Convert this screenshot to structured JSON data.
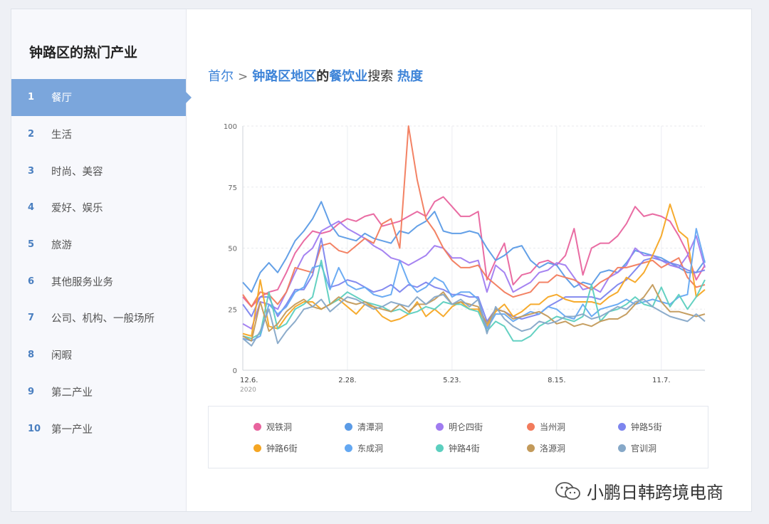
{
  "sidebar": {
    "title": "钟路区的热门产业",
    "items": [
      {
        "num": "1",
        "label": "餐厅"
      },
      {
        "num": "2",
        "label": "生活"
      },
      {
        "num": "3",
        "label": "时尚、美容"
      },
      {
        "num": "4",
        "label": "爱好、娱乐"
      },
      {
        "num": "5",
        "label": "旅游"
      },
      {
        "num": "6",
        "label": "其他服务业务"
      },
      {
        "num": "7",
        "label": "公司、机构、一般场所"
      },
      {
        "num": "8",
        "label": "闲暇"
      },
      {
        "num": "9",
        "label": "第二产业"
      },
      {
        "num": "10",
        "label": "第一产业"
      }
    ],
    "active_index": 0,
    "accent_color": "#7ba6dc"
  },
  "breadcrumb": {
    "root": "首尔",
    "region": "钟路区地区",
    "of1": "的",
    "industry": "餐饮业",
    "search": "搜索",
    "metric": "热度",
    "separator_icon": "chevron-right-icon"
  },
  "watermark": {
    "text": "小鹏日韩跨境电商",
    "icon": "wechat-icon"
  },
  "chart_data": {
    "type": "line",
    "title": "",
    "xlabel": "",
    "ylabel": "",
    "ylim": [
      0,
      100
    ],
    "y_ticks": [
      0,
      25,
      50,
      75,
      100
    ],
    "x_ticks": [
      {
        "index": 0,
        "label": "12.6.",
        "sublabel": "2020"
      },
      {
        "index": 12,
        "label": "2.28."
      },
      {
        "index": 24,
        "label": "5.23."
      },
      {
        "index": 36,
        "label": "8.15."
      },
      {
        "index": 48,
        "label": "11.7."
      }
    ],
    "grid": true,
    "legend_position": "bottom",
    "series": [
      {
        "name": "观铁洞",
        "color": "#e8649e",
        "values": [
          30,
          26,
          30,
          32,
          33,
          40,
          48,
          53,
          57,
          56,
          57,
          60,
          62,
          61,
          63,
          64,
          59,
          60,
          61,
          63,
          65,
          63,
          69,
          71,
          67,
          63,
          63,
          65,
          37,
          45,
          52,
          35,
          39,
          40,
          44,
          45,
          43,
          47,
          58,
          39,
          50,
          52,
          52,
          55,
          60,
          67,
          63,
          64,
          63,
          61,
          55,
          48,
          37,
          43
        ]
      },
      {
        "name": "清潭洞",
        "color": "#5b9be6",
        "values": [
          36,
          32,
          40,
          44,
          40,
          46,
          53,
          57,
          62,
          69,
          60,
          55,
          54,
          53,
          56,
          54,
          53,
          52,
          57,
          56,
          59,
          61,
          65,
          57,
          56,
          56,
          57,
          56,
          50,
          45,
          47,
          50,
          51,
          45,
          42,
          44,
          43,
          38,
          34,
          36,
          35,
          40,
          41,
          40,
          44,
          49,
          48,
          47,
          46,
          44,
          42,
          40,
          40,
          45
        ]
      },
      {
        "name": "明仑四街",
        "color": "#a07cf0",
        "values": [
          19,
          17,
          28,
          27,
          25,
          32,
          40,
          47,
          50,
          57,
          59,
          61,
          58,
          56,
          54,
          51,
          49,
          46,
          45,
          43,
          45,
          47,
          51,
          50,
          46,
          46,
          44,
          45,
          32,
          43,
          40,
          32,
          34,
          36,
          40,
          41,
          44,
          43,
          38,
          33,
          34,
          32,
          38,
          40,
          43,
          50,
          47,
          47,
          45,
          43,
          42,
          47,
          55,
          42
        ]
      },
      {
        "name": "当州洞",
        "color": "#f27b5c",
        "values": [
          31,
          26,
          32,
          31,
          27,
          32,
          42,
          41,
          40,
          51,
          52,
          49,
          48,
          51,
          54,
          52,
          60,
          62,
          50,
          100,
          78,
          62,
          57,
          50,
          45,
          42,
          42,
          43,
          38,
          35,
          32,
          30,
          31,
          32,
          36,
          36,
          39,
          38,
          37,
          35,
          33,
          36,
          38,
          42,
          42,
          43,
          44,
          45,
          42,
          44,
          46,
          38,
          34,
          35
        ]
      },
      {
        "name": "钟路5街",
        "color": "#7d85ee",
        "values": [
          27,
          22,
          30,
          30,
          22,
          27,
          33,
          33,
          39,
          54,
          34,
          35,
          37,
          36,
          34,
          32,
          33,
          35,
          32,
          35,
          34,
          36,
          34,
          33,
          31,
          31,
          30,
          30,
          20,
          25,
          24,
          22,
          21,
          22,
          23,
          26,
          28,
          30,
          30,
          30,
          30,
          29,
          32,
          35,
          37,
          41,
          45,
          46,
          45,
          44,
          43,
          41,
          40,
          41
        ]
      },
      {
        "name": "钟路6街",
        "color": "#f5a623",
        "values": [
          15,
          14,
          37,
          18,
          17,
          22,
          26,
          28,
          28,
          25,
          27,
          29,
          26,
          23,
          27,
          26,
          22,
          20,
          21,
          23,
          28,
          22,
          25,
          22,
          26,
          28,
          25,
          25,
          18,
          24,
          27,
          22,
          24,
          27,
          27,
          30,
          31,
          29,
          28,
          28,
          28,
          27,
          30,
          32,
          38,
          36,
          40,
          47,
          55,
          68,
          57,
          54,
          30,
          33
        ]
      },
      {
        "name": "东成洞",
        "color": "#64a8f2",
        "values": [
          13,
          12,
          14,
          27,
          23,
          26,
          32,
          34,
          42,
          43,
          33,
          42,
          35,
          33,
          34,
          31,
          30,
          31,
          45,
          36,
          32,
          34,
          38,
          36,
          30,
          32,
          32,
          29,
          17,
          23,
          23,
          20,
          22,
          24,
          23,
          26,
          25,
          22,
          21,
          27,
          22,
          25,
          26,
          27,
          29,
          27,
          28,
          29,
          28,
          27,
          30,
          31,
          58,
          44
        ]
      },
      {
        "name": "钟路4街",
        "color": "#5ccfbf",
        "values": [
          14,
          13,
          15,
          32,
          17,
          19,
          25,
          27,
          30,
          45,
          27,
          29,
          32,
          30,
          28,
          27,
          26,
          24,
          25,
          23,
          24,
          26,
          25,
          28,
          27,
          27,
          25,
          24,
          16,
          20,
          18,
          12,
          12,
          14,
          18,
          20,
          22,
          21,
          20,
          22,
          35,
          20,
          24,
          25,
          27,
          30,
          27,
          26,
          34,
          26,
          31,
          25,
          30,
          37
        ]
      },
      {
        "name": "洛源洞",
        "color": "#c39a5a",
        "values": [
          14,
          12,
          28,
          16,
          19,
          24,
          27,
          29,
          26,
          25,
          27,
          30,
          28,
          27,
          28,
          26,
          25,
          24,
          27,
          24,
          27,
          27,
          29,
          32,
          27,
          28,
          27,
          26,
          19,
          25,
          24,
          21,
          22,
          23,
          24,
          22,
          19,
          20,
          18,
          19,
          18,
          20,
          21,
          21,
          23,
          27,
          30,
          35,
          28,
          24,
          24,
          23,
          22,
          23
        ]
      },
      {
        "name": "官训洞",
        "color": "#86a8c8",
        "values": [
          13,
          10,
          16,
          25,
          11,
          16,
          20,
          25,
          26,
          29,
          24,
          27,
          30,
          29,
          27,
          25,
          26,
          28,
          27,
          26,
          30,
          27,
          30,
          31,
          27,
          29,
          26,
          29,
          15,
          26,
          21,
          18,
          16,
          17,
          20,
          19,
          20,
          22,
          22,
          23,
          21,
          22,
          24,
          26,
          25,
          28,
          29,
          26,
          24,
          22,
          21,
          20,
          23,
          20
        ]
      }
    ]
  }
}
